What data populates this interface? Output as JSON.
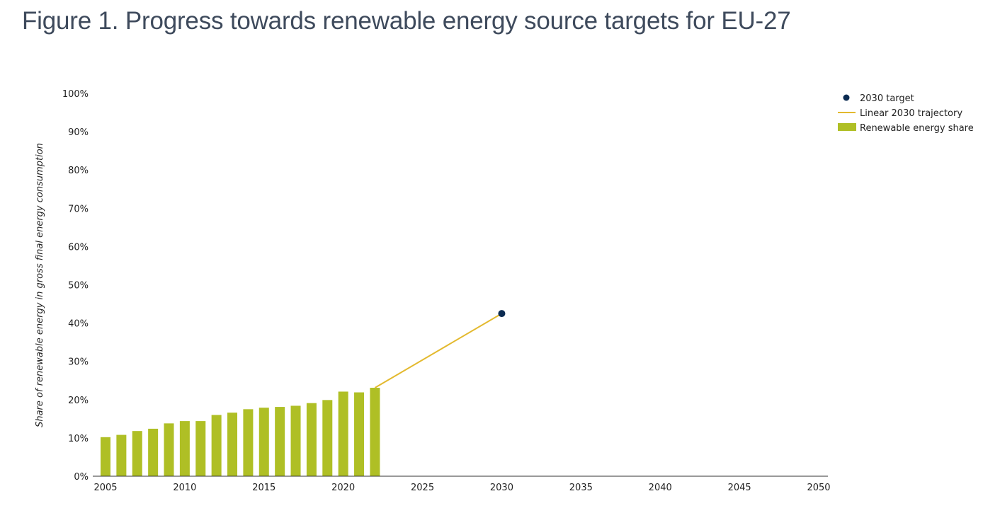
{
  "title": "Figure 1. Progress towards renewable energy source targets for EU-27",
  "chart_data": {
    "type": "bar",
    "ylabel": "Share of renewable energy in gross final energy consumption",
    "xlabel": "",
    "xlim": [
      2005,
      2050
    ],
    "ylim": [
      0,
      100
    ],
    "x_ticks": [
      "2005",
      "2010",
      "2015",
      "2020",
      "2025",
      "2030",
      "2035",
      "2040",
      "2045",
      "2050"
    ],
    "y_ticks": [
      "0%",
      "10%",
      "20%",
      "30%",
      "40%",
      "50%",
      "60%",
      "70%",
      "80%",
      "90%",
      "100%"
    ],
    "grid": false,
    "legend_position": "top-right",
    "colors": {
      "bars": "#afbf25",
      "trajectory": "#e3b92e",
      "target": "#0b2b52",
      "axis": "#333333"
    },
    "series": [
      {
        "name": "Renewable energy share",
        "type": "bar",
        "x": [
          2005,
          2006,
          2007,
          2008,
          2009,
          2010,
          2011,
          2012,
          2013,
          2014,
          2015,
          2016,
          2017,
          2018,
          2019,
          2020,
          2021,
          2022
        ],
        "values": [
          10.2,
          10.8,
          11.8,
          12.4,
          13.8,
          14.4,
          14.4,
          16.0,
          16.6,
          17.5,
          17.9,
          18.1,
          18.4,
          19.1,
          19.9,
          22.1,
          21.9,
          23.1
        ]
      },
      {
        "name": "Linear 2030 trajectory",
        "type": "line",
        "x": [
          2022,
          2030
        ],
        "values": [
          23.1,
          42.5
        ]
      },
      {
        "name": "2030 target",
        "type": "scatter",
        "x": [
          2030
        ],
        "values": [
          42.5
        ]
      }
    ]
  }
}
